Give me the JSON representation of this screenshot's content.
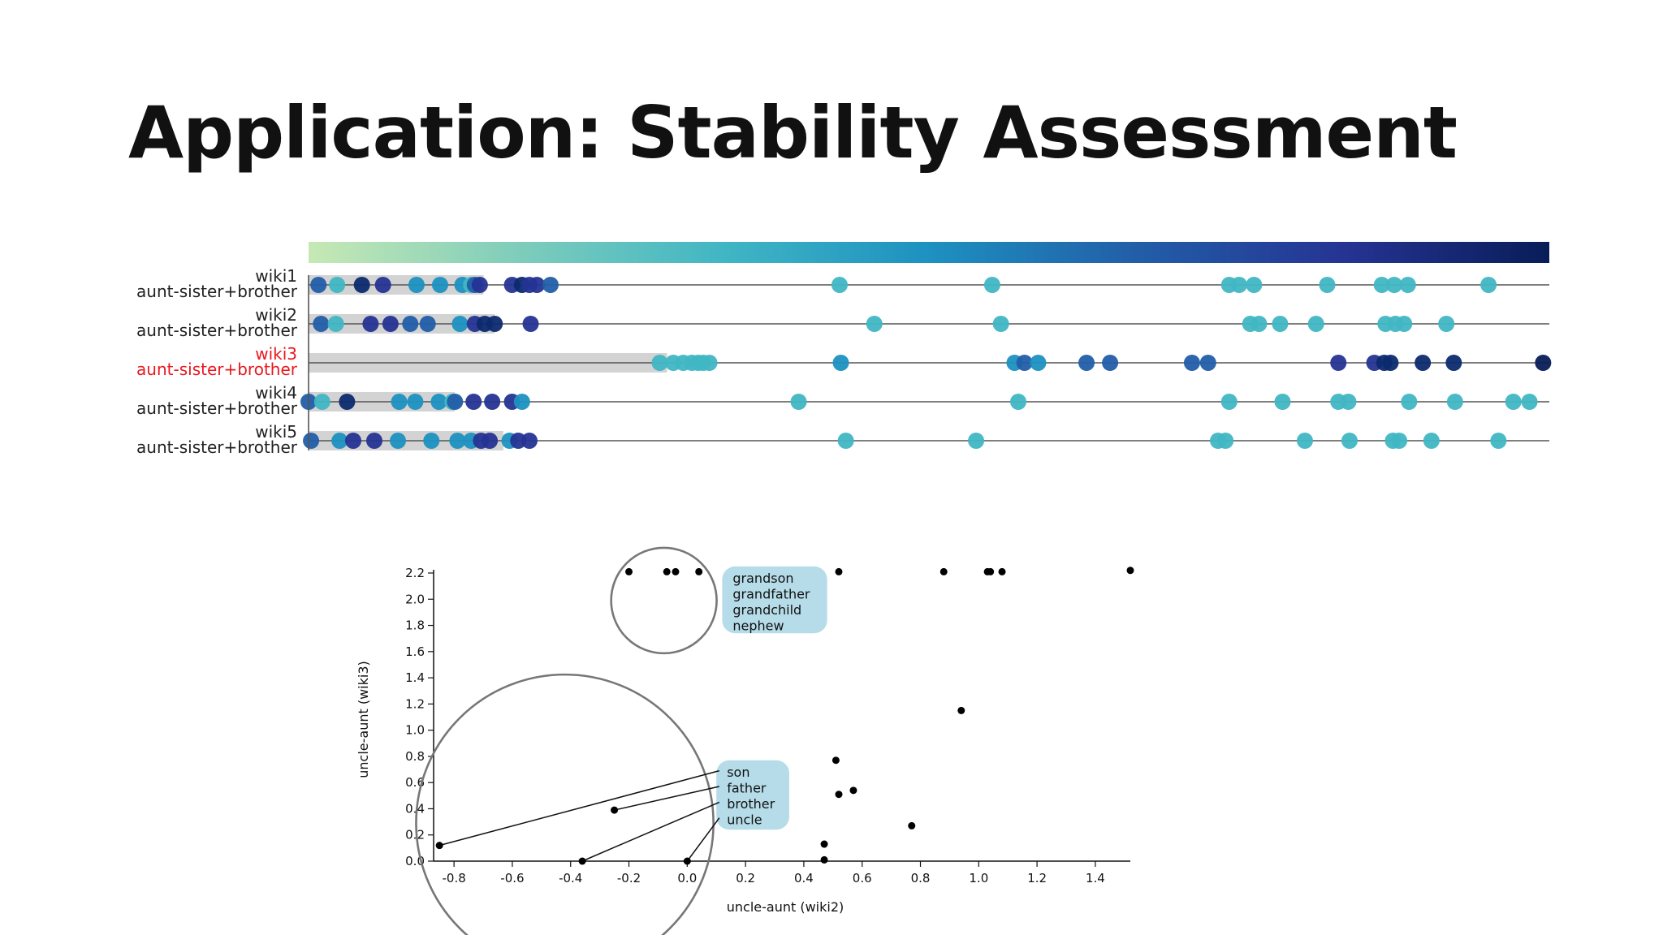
{
  "slide": {
    "title": "Application: Stability Assessment"
  },
  "rank_chart": {
    "type": "scatter",
    "domain_max": 1,
    "colorbar": {
      "stops": [
        "#c7e9b4",
        "#7fcdbb",
        "#41b6c4",
        "#1d91c0",
        "#225ea8",
        "#253494",
        "#081d58"
      ]
    },
    "rows": [
      {
        "name": "wiki1",
        "sublabel": "aunt-sister+brother",
        "highlight": false,
        "band_end": 0.141,
        "points": [
          [
            0.008,
            "#225ea8"
          ],
          [
            0.023,
            "#41b6c4"
          ],
          [
            0.043,
            "#0c2a6e"
          ],
          [
            0.06,
            "#253494"
          ],
          [
            0.087,
            "#1d91c0"
          ],
          [
            0.106,
            "#1d91c0"
          ],
          [
            0.124,
            "#1d91c0"
          ],
          [
            0.131,
            "#41b6c4"
          ],
          [
            0.134,
            "#225ea8"
          ],
          [
            0.138,
            "#253494"
          ],
          [
            0.164,
            "#253494"
          ],
          [
            0.172,
            "#0c2a6e"
          ],
          [
            0.178,
            "#253494"
          ],
          [
            0.184,
            "#253494"
          ],
          [
            0.195,
            "#225ea8"
          ],
          [
            0.428,
            "#41b6c4"
          ],
          [
            0.551,
            "#41b6c4"
          ],
          [
            0.742,
            "#41b6c4"
          ],
          [
            0.75,
            "#41b6c4"
          ],
          [
            0.762,
            "#41b6c4"
          ],
          [
            0.821,
            "#41b6c4"
          ],
          [
            0.865,
            "#41b6c4"
          ],
          [
            0.875,
            "#41b6c4"
          ],
          [
            0.886,
            "#41b6c4"
          ],
          [
            0.951,
            "#41b6c4"
          ]
        ]
      },
      {
        "name": "wiki2",
        "sublabel": "aunt-sister+brother",
        "highlight": false,
        "band_end": 0.15,
        "points": [
          [
            0.01,
            "#225ea8"
          ],
          [
            0.022,
            "#41b6c4"
          ],
          [
            0.05,
            "#253494"
          ],
          [
            0.066,
            "#253494"
          ],
          [
            0.082,
            "#225ea8"
          ],
          [
            0.096,
            "#225ea8"
          ],
          [
            0.122,
            "#1d91c0"
          ],
          [
            0.134,
            "#253494"
          ],
          [
            0.142,
            "#0c2a6e"
          ],
          [
            0.15,
            "#0c2a6e"
          ],
          [
            0.179,
            "#253494"
          ],
          [
            0.456,
            "#41b6c4"
          ],
          [
            0.558,
            "#41b6c4"
          ],
          [
            0.759,
            "#41b6c4"
          ],
          [
            0.766,
            "#41b6c4"
          ],
          [
            0.783,
            "#41b6c4"
          ],
          [
            0.812,
            "#41b6c4"
          ],
          [
            0.868,
            "#41b6c4"
          ],
          [
            0.876,
            "#41b6c4"
          ],
          [
            0.883,
            "#41b6c4"
          ],
          [
            0.917,
            "#41b6c4"
          ]
        ]
      },
      {
        "name": "wiki3",
        "sublabel": "aunt-sister+brother",
        "highlight": true,
        "band_end": 0.289,
        "points": [
          [
            0.283,
            "#41b6c4"
          ],
          [
            0.294,
            "#41b6c4"
          ],
          [
            0.302,
            "#41b6c4"
          ],
          [
            0.309,
            "#41b6c4"
          ],
          [
            0.314,
            "#41b6c4"
          ],
          [
            0.318,
            "#41b6c4"
          ],
          [
            0.323,
            "#41b6c4"
          ],
          [
            0.429,
            "#1d91c0"
          ],
          [
            0.569,
            "#1d91c0"
          ],
          [
            0.577,
            "#225ea8"
          ],
          [
            0.588,
            "#1d91c0"
          ],
          [
            0.627,
            "#225ea8"
          ],
          [
            0.646,
            "#225ea8"
          ],
          [
            0.712,
            "#225ea8"
          ],
          [
            0.725,
            "#225ea8"
          ],
          [
            0.83,
            "#253494"
          ],
          [
            0.859,
            "#253494"
          ],
          [
            0.867,
            "#0c2a6e"
          ],
          [
            0.872,
            "#0c2a6e"
          ],
          [
            0.898,
            "#0c2a6e"
          ],
          [
            0.923,
            "#0c2a6e"
          ],
          [
            0.995,
            "#081d58"
          ]
        ]
      },
      {
        "name": "wiki4",
        "sublabel": "aunt-sister+brother",
        "highlight": false,
        "band_end": 0.118,
        "points": [
          [
            0.0,
            "#225ea8"
          ],
          [
            0.011,
            "#41b6c4"
          ],
          [
            0.031,
            "#0c2a6e"
          ],
          [
            0.073,
            "#1d91c0"
          ],
          [
            0.086,
            "#1d91c0"
          ],
          [
            0.105,
            "#1d91c0"
          ],
          [
            0.116,
            "#41b6c4"
          ],
          [
            0.118,
            "#225ea8"
          ],
          [
            0.133,
            "#253494"
          ],
          [
            0.148,
            "#253494"
          ],
          [
            0.164,
            "#253494"
          ],
          [
            0.172,
            "#1d91c0"
          ],
          [
            0.395,
            "#41b6c4"
          ],
          [
            0.572,
            "#41b6c4"
          ],
          [
            0.742,
            "#41b6c4"
          ],
          [
            0.785,
            "#41b6c4"
          ],
          [
            0.83,
            "#41b6c4"
          ],
          [
            0.838,
            "#41b6c4"
          ],
          [
            0.887,
            "#41b6c4"
          ],
          [
            0.924,
            "#41b6c4"
          ],
          [
            0.971,
            "#41b6c4"
          ],
          [
            0.984,
            "#41b6c4"
          ]
        ]
      },
      {
        "name": "wiki5",
        "sublabel": "aunt-sister+brother",
        "highlight": false,
        "band_end": 0.157,
        "points": [
          [
            0.002,
            "#225ea8"
          ],
          [
            0.025,
            "#1d91c0"
          ],
          [
            0.036,
            "#253494"
          ],
          [
            0.053,
            "#253494"
          ],
          [
            0.072,
            "#1d91c0"
          ],
          [
            0.099,
            "#1d91c0"
          ],
          [
            0.12,
            "#1d91c0"
          ],
          [
            0.131,
            "#1d91c0"
          ],
          [
            0.139,
            "#253494"
          ],
          [
            0.146,
            "#253494"
          ],
          [
            0.162,
            "#1d91c0"
          ],
          [
            0.169,
            "#253494"
          ],
          [
            0.178,
            "#253494"
          ],
          [
            0.433,
            "#41b6c4"
          ],
          [
            0.538,
            "#41b6c4"
          ],
          [
            0.733,
            "#41b6c4"
          ],
          [
            0.739,
            "#41b6c4"
          ],
          [
            0.803,
            "#41b6c4"
          ],
          [
            0.839,
            "#41b6c4"
          ],
          [
            0.874,
            "#41b6c4"
          ],
          [
            0.879,
            "#41b6c4"
          ],
          [
            0.905,
            "#41b6c4"
          ],
          [
            0.959,
            "#41b6c4"
          ]
        ]
      }
    ]
  },
  "scatter_chart": {
    "type": "scatter",
    "xlabel": "uncle-aunt (wiki2)",
    "ylabel": "uncle-aunt (wiki3)",
    "xlim": [
      -0.87,
      1.52
    ],
    "ylim": [
      0.0,
      2.2
    ],
    "xticks": [
      "-0.8",
      "-0.6",
      "-0.4",
      "-0.2",
      "0.0",
      "0.2",
      "0.4",
      "0.6",
      "0.8",
      "1.0",
      "1.2",
      "1.4"
    ],
    "xtick_values": [
      -0.8,
      -0.6,
      -0.4,
      -0.2,
      0.0,
      0.2,
      0.4,
      0.6,
      0.8,
      1.0,
      1.2,
      1.4
    ],
    "yticks": [
      "0.0",
      "0.2",
      "0.4",
      "0.6",
      "0.8",
      "1.0",
      "1.2",
      "1.4",
      "1.6",
      "1.8",
      "2.0",
      "2.2"
    ],
    "ytick_values": [
      0.0,
      0.2,
      0.4,
      0.6,
      0.8,
      1.0,
      1.2,
      1.4,
      1.6,
      1.8,
      2.0,
      2.2
    ],
    "points": [
      [
        -0.2,
        2.21
      ],
      [
        -0.07,
        2.21
      ],
      [
        -0.04,
        2.21
      ],
      [
        0.04,
        2.21
      ],
      [
        0.52,
        2.21
      ],
      [
        0.88,
        2.21
      ],
      [
        1.03,
        2.21
      ],
      [
        1.04,
        2.21
      ],
      [
        1.08,
        2.21
      ],
      [
        1.52,
        2.22
      ],
      [
        0.94,
        1.15
      ],
      [
        0.51,
        0.77
      ],
      [
        0.52,
        0.51
      ],
      [
        0.57,
        0.54
      ],
      [
        0.77,
        0.27
      ],
      [
        -0.25,
        0.39
      ],
      [
        -0.85,
        0.12
      ],
      [
        -0.36,
        0.0
      ],
      [
        0.0,
        0.0
      ],
      [
        0.47,
        0.13
      ],
      [
        0.47,
        0.01
      ]
    ],
    "circles": [
      {
        "name": "top-cluster-circle",
        "cx": -0.08,
        "cy": 1.99,
        "r": 0.181
      },
      {
        "name": "bottom-cluster-circle",
        "cx": -0.42,
        "cy": 0.29,
        "r": 0.51
      }
    ],
    "annotations": [
      {
        "name": "top-annotation",
        "x": 0.12,
        "y": 2.25,
        "w": 0.36,
        "h": 0.51,
        "lines": [
          "grandson",
          "grandfather",
          "grandchild",
          "nephew"
        ]
      },
      {
        "name": "bottom-annotation",
        "x": 0.1,
        "y": 0.77,
        "w": 0.25,
        "h": 0.53,
        "lines": [
          "son",
          "father",
          "brother",
          "uncle"
        ]
      }
    ],
    "leaders": [
      {
        "from": [
          0.11,
          0.69
        ],
        "to": [
          -0.85,
          0.12
        ]
      },
      {
        "from": [
          0.11,
          0.57
        ],
        "to": [
          -0.25,
          0.39
        ]
      },
      {
        "from": [
          0.11,
          0.45
        ],
        "to": [
          -0.36,
          0.0
        ]
      },
      {
        "from": [
          0.11,
          0.33
        ],
        "to": [
          0.0,
          0.0
        ]
      }
    ]
  }
}
